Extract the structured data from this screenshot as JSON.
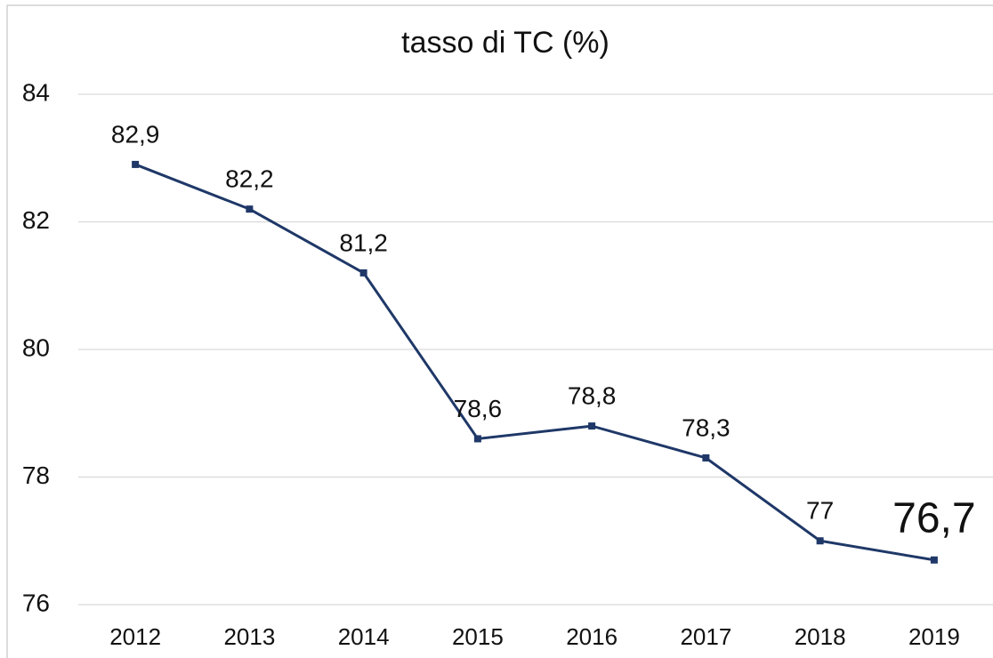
{
  "chart_data": {
    "type": "line",
    "title": "tasso di TC (%)",
    "categories": [
      "2012",
      "2013",
      "2014",
      "2015",
      "2016",
      "2017",
      "2018",
      "2019"
    ],
    "series": [
      {
        "name": "tasso di TC",
        "color": "#1f3868",
        "values": [
          82.9,
          82.2,
          81.2,
          78.6,
          78.8,
          78.3,
          77,
          76.7
        ],
        "value_labels": [
          "82,9",
          "82,2",
          "81,2",
          "78,6",
          "78,8",
          "78,3",
          "77",
          "76,7"
        ]
      }
    ],
    "ylim": [
      76,
      84
    ],
    "yticks": [
      76,
      78,
      80,
      82,
      84
    ],
    "grid": true
  }
}
